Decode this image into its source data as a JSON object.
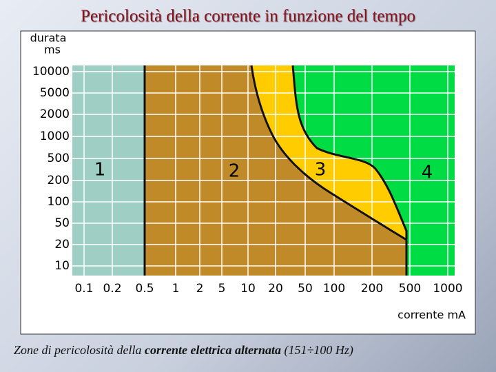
{
  "title": "Pericolosità della corrente in funzione del tempo",
  "chart": {
    "y_axis_label": [
      "durata",
      "ms"
    ],
    "x_axis_label": "corrente mA",
    "y_tick_labels": [
      "10000",
      "5000",
      "2000",
      "1000",
      "500",
      "200",
      "100",
      "50",
      "20",
      "10"
    ],
    "x_tick_labels": [
      "0.1",
      "0.2",
      "0.5",
      "1",
      "2",
      "5",
      "10",
      "20",
      "50",
      "100",
      "200",
      "500",
      "1000"
    ],
    "zones": [
      "1",
      "2",
      "3",
      "4"
    ]
  },
  "caption": {
    "part1": "Zone di pericolosità della ",
    "part2": "corrente elettrica alternata",
    "part3": " (151÷100 Hz)"
  }
}
